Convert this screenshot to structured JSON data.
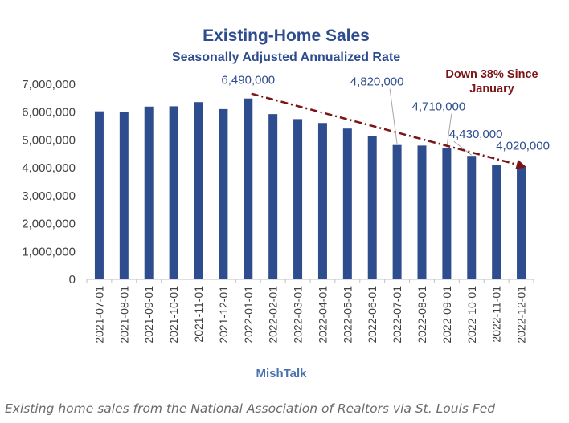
{
  "chart_data": {
    "type": "bar",
    "title": "Existing-Home Sales",
    "subtitle": "Seasonally Adjusted Annualized Rate",
    "xlabel": "MishTalk",
    "ylabel": "",
    "ylim": [
      0,
      7000000
    ],
    "y_ticks": [
      "0",
      "1,000,000",
      "2,000,000",
      "3,000,000",
      "4,000,000",
      "5,000,000",
      "6,000,000",
      "7,000,000"
    ],
    "grid": false,
    "categories": [
      "2021-07-01",
      "2021-08-01",
      "2021-09-01",
      "2021-10-01",
      "2021-11-01",
      "2021-12-01",
      "2022-01-01",
      "2022-02-01",
      "2022-03-01",
      "2022-04-01",
      "2022-05-01",
      "2022-06-01",
      "2022-07-01",
      "2022-08-01",
      "2022-09-01",
      "2022-10-01",
      "2022-11-01",
      "2022-12-01"
    ],
    "values": [
      6030000,
      6000000,
      6200000,
      6210000,
      6360000,
      6110000,
      6490000,
      5930000,
      5750000,
      5610000,
      5410000,
      5130000,
      4820000,
      4800000,
      4710000,
      4430000,
      4090000,
      4020000
    ],
    "data_labels": [
      {
        "category": "2022-01-01",
        "text": "6,490,000"
      },
      {
        "category": "2022-07-01",
        "text": "4,820,000"
      },
      {
        "category": "2022-09-01",
        "text": "4,710,000"
      },
      {
        "category": "2022-10-01",
        "text": "4,430,000"
      },
      {
        "category": "2022-12-01",
        "text": "4,020,000"
      }
    ],
    "annotation": {
      "lines": [
        "Down 38% Since",
        "January"
      ],
      "from": "2022-01-01",
      "to": "2022-12-01"
    },
    "colors": {
      "bar": "#2E4D8E",
      "title": "#2E4D8E",
      "annotation": "#7B1416",
      "label": "#2E4D8E",
      "axis_text": "#404040"
    }
  },
  "caption": "Existing home sales from the National Association of Realtors via St. Louis Fed"
}
